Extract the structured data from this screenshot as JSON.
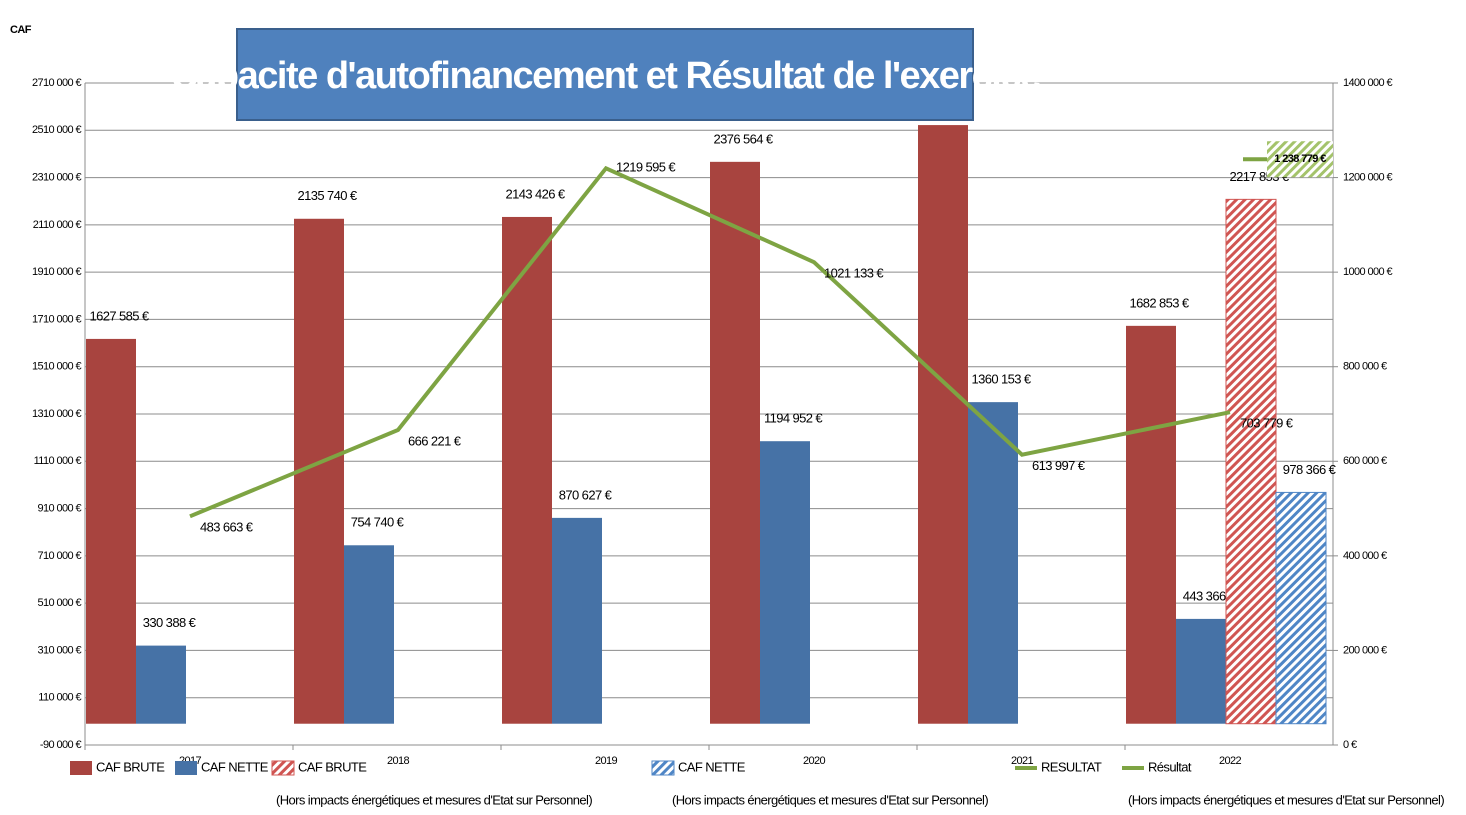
{
  "chart_data": {
    "type": "bar",
    "title": "Capacite d'autofinancement et Résultat de l'exercice",
    "y_label": "CAF",
    "categories": [
      "2017",
      "2018",
      "2019",
      "2020",
      "2021",
      "2022"
    ],
    "ylim": [
      -90000,
      2710000
    ],
    "yticks": [
      {
        "value": -90000,
        "label": "-90 000 €"
      },
      {
        "value": 110000,
        "label": "110 000 €"
      },
      {
        "value": 310000,
        "label": "310 000 €"
      },
      {
        "value": 510000,
        "label": "510 000 €"
      },
      {
        "value": 710000,
        "label": "710 000 €"
      },
      {
        "value": 910000,
        "label": "910 000 €"
      },
      {
        "value": 1110000,
        "label": "1110 000 €"
      },
      {
        "value": 1310000,
        "label": "1310 000 €"
      },
      {
        "value": 1510000,
        "label": "1510 000 €"
      },
      {
        "value": 1710000,
        "label": "1710 000 €"
      },
      {
        "value": 1910000,
        "label": "1910 000 €"
      },
      {
        "value": 2110000,
        "label": "2110 000 €"
      },
      {
        "value": 2310000,
        "label": "2310 000 €"
      },
      {
        "value": 2510000,
        "label": "2510 000 €"
      },
      {
        "value": 2710000,
        "label": "2710 000 €"
      }
    ],
    "y2lim": [
      0,
      1400000
    ],
    "y2ticks": [
      {
        "value": 0,
        "label": "0 €"
      },
      {
        "value": 200000,
        "label": "200 000 €"
      },
      {
        "value": 400000,
        "label": "400 000 €"
      },
      {
        "value": 600000,
        "label": "600 000 €"
      },
      {
        "value": 800000,
        "label": "800 000 €"
      },
      {
        "value": 1000000,
        "label": "1000 000 €"
      },
      {
        "value": 1200000,
        "label": "1200 000 €"
      },
      {
        "value": 1400000,
        "label": "1400 000 €"
      }
    ],
    "grid": true,
    "series": [
      {
        "name": "CAF BRUTE",
        "color": "#a8443f",
        "kind": "bar",
        "slot": 0,
        "values": [
          1627585,
          2135740,
          2143426,
          2376564,
          2532000,
          1682853
        ],
        "value_labels": [
          "1627 585 €",
          "2135 740 €",
          "2143 426 €",
          "2376 564 €",
          "€",
          "1682 853 €"
        ]
      },
      {
        "name": "CAF NETTE",
        "color": "#4672a6",
        "kind": "bar",
        "slot": 1,
        "values": [
          330388,
          754740,
          870627,
          1194952,
          1360153,
          443366
        ],
        "value_labels": [
          "330 388 €",
          "754 740 €",
          "870 627 €",
          "1194 952 €",
          "1360 153 €",
          "443 366 €"
        ]
      },
      {
        "name": "CAF BRUTE",
        "note": "(Hors impacts énergétiques et mesures d'Etat sur Personnel)",
        "color": "#d05552",
        "kind": "hatch",
        "slot": 2,
        "values": [
          null,
          null,
          null,
          null,
          null,
          2217853
        ],
        "value_labels": [
          null,
          null,
          null,
          null,
          null,
          "2217 853 €"
        ]
      },
      {
        "name": "CAF NETTE",
        "note": "(Hors impacts énergétiques et mesures d'Etat sur Personnel)",
        "color": "#4f86c6",
        "kind": "hatch",
        "slot": 3,
        "values": [
          null,
          null,
          null,
          null,
          null,
          978366
        ],
        "value_labels": [
          null,
          null,
          null,
          null,
          null,
          "978 366 €"
        ]
      },
      {
        "name": "RESULTAT",
        "color": "#7ea443",
        "kind": "line",
        "axis": "y2",
        "values": [
          483663,
          666221,
          1219595,
          1021133,
          613997,
          703779
        ],
        "value_labels": [
          "483 663 €",
          "666 221 €",
          "1219 595 €",
          "1021 133 €",
          "613 997 €",
          "703 779 €"
        ]
      },
      {
        "name": "Résultat",
        "note": "(Hors impacts énergétiques et mesures d'Etat sur Personnel)",
        "color": "#7ea443",
        "kind": "marker",
        "axis": "y2",
        "values": [
          null,
          null,
          null,
          null,
          null,
          1238779
        ],
        "value_labels": [
          null,
          null,
          null,
          null,
          null,
          "1 238 779 €"
        ]
      }
    ]
  }
}
